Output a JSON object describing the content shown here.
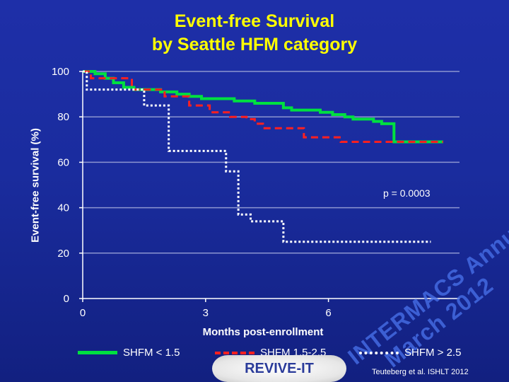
{
  "slide": {
    "title_line1": "Event-free Survival",
    "title_line2": "by Seattle HFM category",
    "watermark_line1": "INTERMACS Annual Meeting",
    "watermark_line2": "March 2012",
    "badge": "REVIVE-IT",
    "citation": "Teuteberg et al. ISHLT 2012"
  },
  "chart_data": {
    "type": "line",
    "title": "Event-free Survival by Seattle HFM category",
    "xlabel": "Months post-enrollment",
    "ylabel": "Event-free survival (%)",
    "xlim": [
      0,
      9.2
    ],
    "ylim": [
      0,
      100
    ],
    "xticks": [
      0,
      3,
      6
    ],
    "yticks": [
      0,
      20,
      40,
      60,
      80,
      100
    ],
    "annotation": "p = 0.0003",
    "step": true,
    "series": [
      {
        "name": "SHFM < 1.5",
        "color": "#00e040",
        "style": "solid",
        "x": [
          0,
          0.3,
          0.55,
          0.75,
          1.0,
          1.25,
          1.55,
          1.9,
          2.3,
          2.6,
          2.9,
          3.3,
          3.7,
          4.0,
          4.2,
          4.5,
          4.9,
          5.1,
          5.4,
          5.8,
          6.1,
          6.4,
          6.6,
          6.85,
          7.1,
          7.3,
          7.6,
          8.0,
          8.8
        ],
        "y": [
          100,
          99,
          97,
          95,
          93,
          92,
          92,
          91,
          90,
          89,
          88,
          88,
          87,
          87,
          86,
          86,
          84,
          83,
          83,
          82,
          81,
          80,
          79,
          79,
          78,
          77,
          69,
          69,
          69
        ]
      },
      {
        "name": "SHFM 1.5-2.5",
        "color": "#ff2020",
        "style": "dashed",
        "x": [
          0,
          0.2,
          1.2,
          1.6,
          2.0,
          2.45,
          2.6,
          3.1,
          3.6,
          4.0,
          4.2,
          4.4,
          5.1,
          5.4,
          5.9,
          6.3,
          6.5,
          7.6,
          7.9,
          8.0,
          8.4,
          8.8
        ],
        "y": [
          100,
          97,
          92,
          92,
          89,
          89,
          85,
          82,
          80,
          79,
          77,
          75,
          75,
          71,
          71,
          69,
          69,
          69,
          69,
          69,
          69,
          69
        ]
      },
      {
        "name": "SHFM > 2.5",
        "color": "#ffffff",
        "style": "dotted",
        "x": [
          0,
          0.1,
          1.5,
          2.1,
          3.5,
          3.8,
          4.1,
          4.9,
          8.5
        ],
        "y": [
          100,
          92,
          85,
          65,
          56,
          37,
          34,
          25,
          25
        ]
      }
    ]
  }
}
